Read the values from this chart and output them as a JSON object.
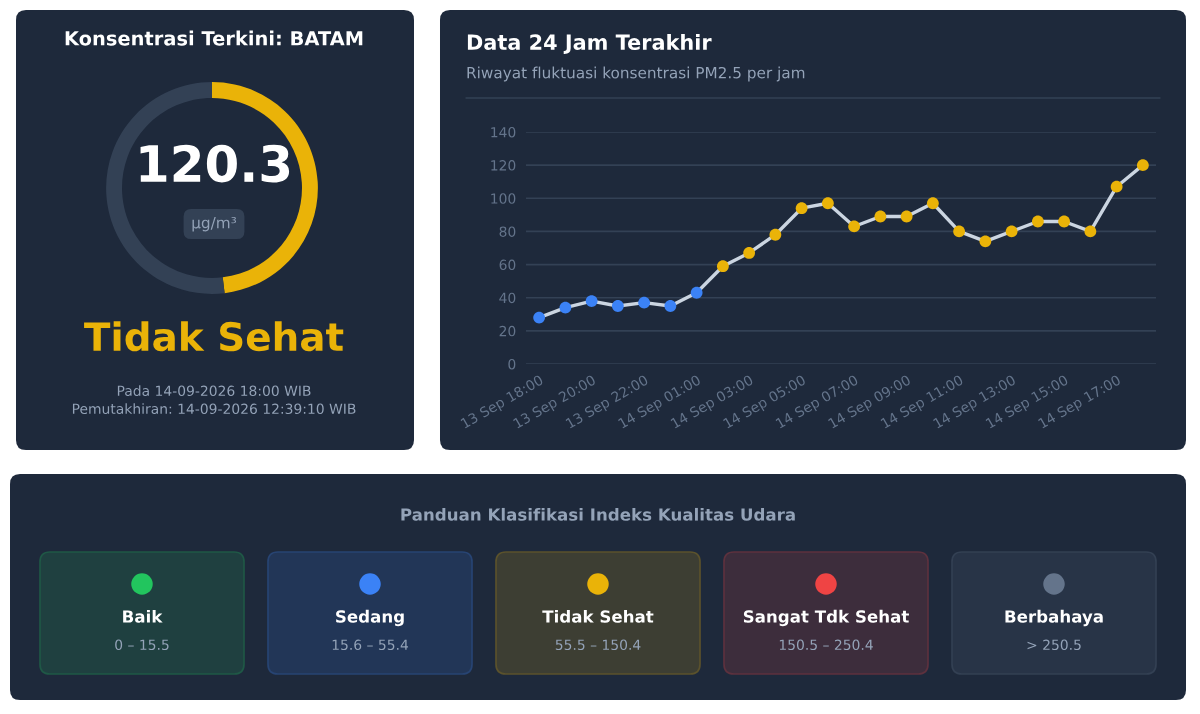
{
  "chart_data": [
    {
      "type": "donut",
      "title": "Konsentrasi Terkini: BATAM",
      "categories": [
        null,
        null
      ],
      "values": [
        48.1,
        51.9
      ],
      "colors": [
        "#eab308",
        "#334155"
      ],
      "annotations": [
        "120.3",
        "µg/m³",
        "Tidak Sehat",
        "Pada 14-09-2026 18:00 WIB",
        "Pemutakhiran: 14-09-2026 12:39:10 WIB"
      ]
    },
    {
      "type": "line",
      "title": "Data 24 Jam Terakhir",
      "subtitle": "Riwayat fluktuasi konsentrasi PM2.5 per jam",
      "categories": [
        "13 Sep 18:00",
        null,
        "13 Sep 20:00",
        null,
        "13 Sep 22:00",
        null,
        "14 Sep 01:00",
        null,
        "14 Sep 03:00",
        null,
        "14 Sep 05:00",
        null,
        "14 Sep 07:00",
        null,
        "14 Sep 09:00",
        null,
        "14 Sep 11:00",
        null,
        "14 Sep 13:00",
        null,
        "14 Sep 15:00",
        null,
        "14 Sep 17:00",
        null
      ],
      "series": [
        {
          "color": "#cbd5e1",
          "values": [
            28,
            34,
            38,
            35,
            37,
            35,
            43,
            59,
            67,
            78,
            94,
            97,
            83,
            89,
            89,
            97,
            80,
            74,
            80,
            86,
            86,
            80,
            107,
            120
          ],
          "colors": [
            "#3b82f6",
            "#3b82f6",
            "#3b82f6",
            "#3b82f6",
            "#3b82f6",
            "#3b82f6",
            "#3b82f6",
            "#eab308",
            "#eab308",
            "#eab308",
            "#eab308",
            "#eab308",
            "#eab308",
            "#eab308",
            "#eab308",
            "#eab308",
            "#eab308",
            "#eab308",
            "#eab308",
            "#eab308",
            "#eab308",
            "#eab308",
            "#eab308",
            "#eab308"
          ]
        }
      ],
      "ylim": [
        0,
        140
      ],
      "yticks": [
        0,
        20,
        40,
        60,
        80,
        100,
        120,
        140
      ],
      "grid": "y",
      "marker": "circle",
      "line_style": "solid",
      "legend": false
    },
    {
      "type": "other",
      "title": "Panduan Klasifikasi Indeks Kualitas Udara",
      "categories": [
        "Baik",
        "Sedang",
        "Tidak Sehat",
        "Sangat Tdk Sehat",
        "Berbahaya"
      ],
      "colors": [
        "#22c55e",
        "#3b82f6",
        "#eab308",
        "#ef4444",
        "#64748b"
      ],
      "annotations": [
        "0 – 15.5",
        "15.6 – 55.4",
        "55.5 – 150.4",
        "150.5 – 250.4",
        "> 250.5"
      ]
    }
  ]
}
